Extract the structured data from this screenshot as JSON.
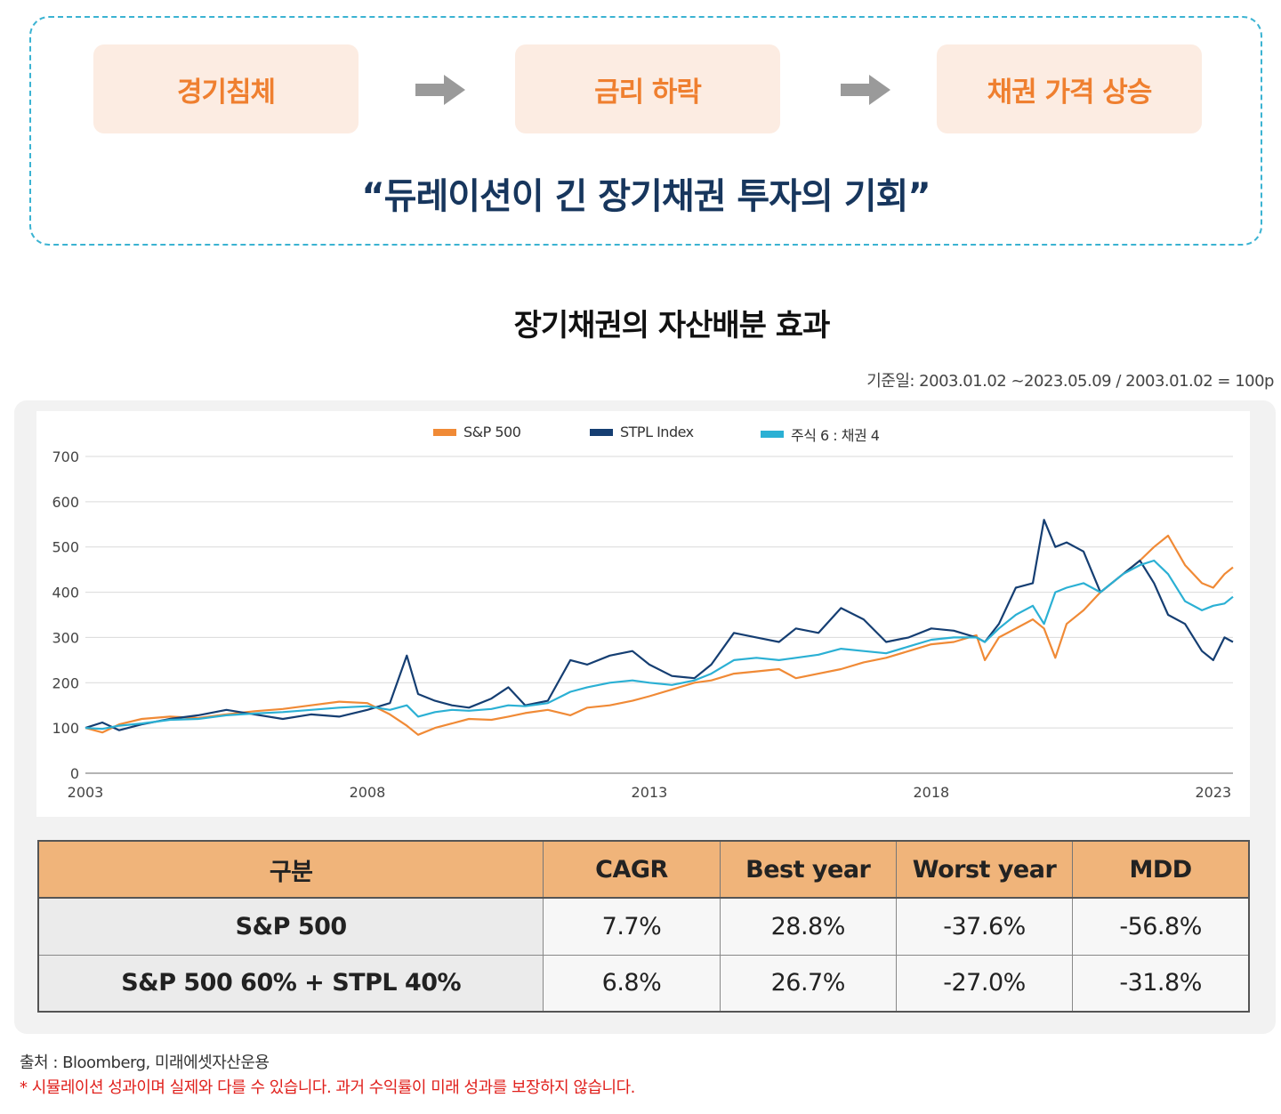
{
  "flow": {
    "steps": [
      "경기침체",
      "금리 하락",
      "채권 가격 상승"
    ],
    "quote": "“듀레이션이 긴 장기채권 투자의 기회”"
  },
  "chart_header": {
    "title": "장기채권의 자산배분 효과",
    "base_date": "기준일: 2003.01.02 ~2023.05.09 / 2003.01.02 = 100p"
  },
  "colors": {
    "sp500": "#f08a36",
    "stpl": "#153e72",
    "mix": "#2bb0d4"
  },
  "chart_data": {
    "type": "line",
    "title": "",
    "xlabel": "",
    "ylabel": "",
    "ylim": [
      0,
      700
    ],
    "yticks": [
      0,
      100,
      200,
      300,
      400,
      500,
      600,
      700
    ],
    "xticks": [
      2003,
      2008,
      2013,
      2018,
      2023
    ],
    "xlim": [
      2003.0,
      2023.35
    ],
    "legend": "top-center",
    "grid": true,
    "x": [
      2003.0,
      2003.3,
      2003.6,
      2004.0,
      2004.5,
      2005.0,
      2005.5,
      2006.0,
      2006.5,
      2007.0,
      2007.5,
      2008.0,
      2008.4,
      2008.7,
      2008.9,
      2009.2,
      2009.5,
      2009.8,
      2010.2,
      2010.5,
      2010.8,
      2011.2,
      2011.6,
      2011.9,
      2012.3,
      2012.7,
      2013.0,
      2013.4,
      2013.8,
      2014.1,
      2014.5,
      2014.9,
      2015.3,
      2015.6,
      2016.0,
      2016.4,
      2016.8,
      2017.2,
      2017.6,
      2018.0,
      2018.4,
      2018.8,
      2018.95,
      2019.2,
      2019.5,
      2019.8,
      2020.0,
      2020.2,
      2020.4,
      2020.7,
      2021.0,
      2021.4,
      2021.7,
      2021.95,
      2022.2,
      2022.5,
      2022.8,
      2023.0,
      2023.2,
      2023.35
    ],
    "series": [
      {
        "name": "S&P 500",
        "values": [
          100,
          90,
          108,
          120,
          125,
          122,
          130,
          137,
          142,
          150,
          158,
          155,
          130,
          105,
          85,
          100,
          110,
          120,
          118,
          125,
          133,
          140,
          128,
          145,
          150,
          160,
          170,
          185,
          200,
          205,
          220,
          225,
          230,
          210,
          220,
          230,
          245,
          255,
          270,
          285,
          290,
          305,
          250,
          300,
          320,
          340,
          320,
          255,
          330,
          360,
          400,
          440,
          470,
          500,
          525,
          460,
          420,
          410,
          440,
          455
        ]
      },
      {
        "name": "STPL Index",
        "values": [
          100,
          112,
          95,
          108,
          120,
          128,
          140,
          130,
          120,
          130,
          125,
          140,
          155,
          260,
          175,
          160,
          150,
          145,
          165,
          190,
          150,
          160,
          250,
          240,
          260,
          270,
          240,
          215,
          210,
          240,
          310,
          300,
          290,
          320,
          310,
          365,
          340,
          290,
          300,
          320,
          315,
          300,
          290,
          330,
          410,
          420,
          560,
          500,
          510,
          490,
          400,
          440,
          470,
          420,
          350,
          330,
          270,
          250,
          300,
          290
        ]
      },
      {
        "name": "주식 6 : 채권 4",
        "values": [
          100,
          98,
          105,
          110,
          118,
          120,
          128,
          132,
          135,
          140,
          145,
          148,
          140,
          150,
          125,
          135,
          140,
          138,
          142,
          150,
          148,
          155,
          180,
          190,
          200,
          205,
          200,
          195,
          205,
          220,
          250,
          255,
          250,
          255,
          262,
          275,
          270,
          265,
          280,
          295,
          300,
          300,
          290,
          320,
          350,
          370,
          330,
          400,
          410,
          420,
          400,
          440,
          460,
          470,
          440,
          380,
          360,
          370,
          375,
          390
        ]
      }
    ]
  },
  "table": {
    "headers": [
      "구분",
      "CAGR",
      "Best year",
      "Worst year",
      "MDD"
    ],
    "rows": [
      [
        "S&P 500",
        "7.7%",
        "28.8%",
        "-37.6%",
        "-56.8%"
      ],
      [
        "S&P 500 60% + STPL 40%",
        "6.8%",
        "26.7%",
        "-27.0%",
        "-31.8%"
      ]
    ]
  },
  "footer": {
    "source": "출처 : Bloomberg, 미래에셋자산운용",
    "disclaimer": "* 시뮬레이션 성과이며 실제와 다를 수 있습니다. 과거 수익률이 미래 성과를 보장하지 않습니다."
  }
}
